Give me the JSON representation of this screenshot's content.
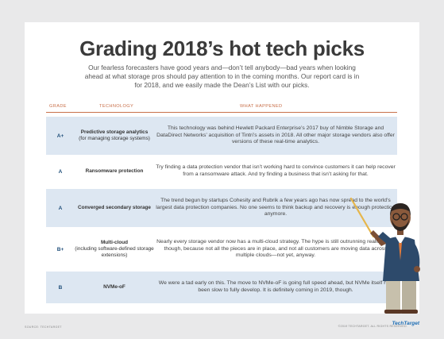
{
  "title": "Grading 2018’s hot tech picks",
  "intro": "Our fearless forecasters have good years and—don’t tell anybody—bad years when looking ahead at what storage pros should pay attention to in the coming months. Our report card is in for 2018, and we easily made the Dean’s List with our picks.",
  "headers": {
    "grade": "GRADE",
    "technology": "TECHNOLOGY",
    "happened": "WHAT HAPPENED"
  },
  "rows": [
    {
      "grade": "A+",
      "tech_bold": "Predictive storage analytics",
      "tech_note": "(for managing storage systems)",
      "happened": "This technology was behind Hewlett Packard Enterprise’s 2017 buy of Nimble Storage and DataDirect Networks’ acquisition of Tintri’s assets in 2018. All other major storage vendors also offer versions of these real-time analytics."
    },
    {
      "grade": "A",
      "tech_bold": "Ransomware protection",
      "tech_note": "",
      "happened": "Try finding a data protection vendor that isn’t working hard to convince customers it can help recover from a ransomware attack. And try finding a business that isn’t asking for that."
    },
    {
      "grade": "A",
      "tech_bold": "Converged secondary storage",
      "tech_note": "",
      "happened": "The trend begun by startups Cohesity and Rubrik a few years ago has now spread to the world’s largest data protection companies. No one seems to think backup and recovery is enough protection anymore."
    },
    {
      "grade": "B+",
      "tech_bold": "Multi-cloud",
      "tech_note": "(including software-defined storage extensions)",
      "happened": "Nearly every storage vendor now has a multi-cloud strategy. The hype is still outrunning reality a bit, though, because not all the pieces are in place, and not all customers are moving data across multiple clouds—not yet, anyway."
    },
    {
      "grade": "B",
      "tech_bold": "NVMe-oF",
      "tech_note": "",
      "happened": "We were a tad early on this. The move to NVMe-oF is going full speed ahead, but NVMe itself has been slow to fully develop. It is definitely coming in 2019, though."
    }
  ],
  "footer": {
    "left": "SOURCE: TECHTARGET",
    "right": "©2019 TECHTARGET. ALL RIGHTS RESERVED.",
    "logo": "TechTarget"
  },
  "colors": {
    "accent": "#c8704a",
    "grade": "#1f4e79",
    "row_shade": "#dde7f2"
  }
}
